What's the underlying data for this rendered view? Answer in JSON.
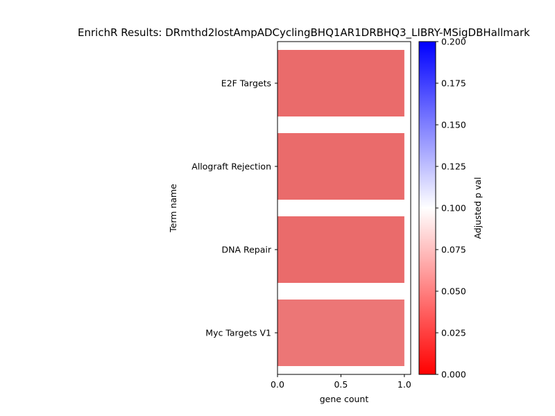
{
  "chart_data": {
    "type": "bar",
    "orientation": "horizontal",
    "title": "EnrichR Results: DRmthd2lostAmpADCyclingBHQ1AR1DRBHQ3_LIBRY-MSigDBHallmark",
    "xlabel": "gene count",
    "ylabel": "Term name",
    "xlim": [
      0,
      1.05
    ],
    "x_ticks": [
      "0.0",
      "0.5",
      "1.0"
    ],
    "grid": false,
    "categories": [
      "E2F Targets",
      "Allograft Rejection",
      "DNA Repair",
      "Myc Targets V1"
    ],
    "values": [
      1,
      1,
      1,
      1
    ],
    "bar_colors": [
      "#ea6b6b",
      "#ea6b6b",
      "#ea6b6b",
      "#ec7676"
    ],
    "colorbar": {
      "label": "Adjusted p val",
      "range": [
        0,
        0.2
      ],
      "ticks": [
        "0.000",
        "0.025",
        "0.050",
        "0.075",
        "0.100",
        "0.125",
        "0.150",
        "0.175",
        "0.200"
      ],
      "colormap": [
        "#ff0000",
        "#ffffff",
        "#0000ff"
      ]
    }
  }
}
